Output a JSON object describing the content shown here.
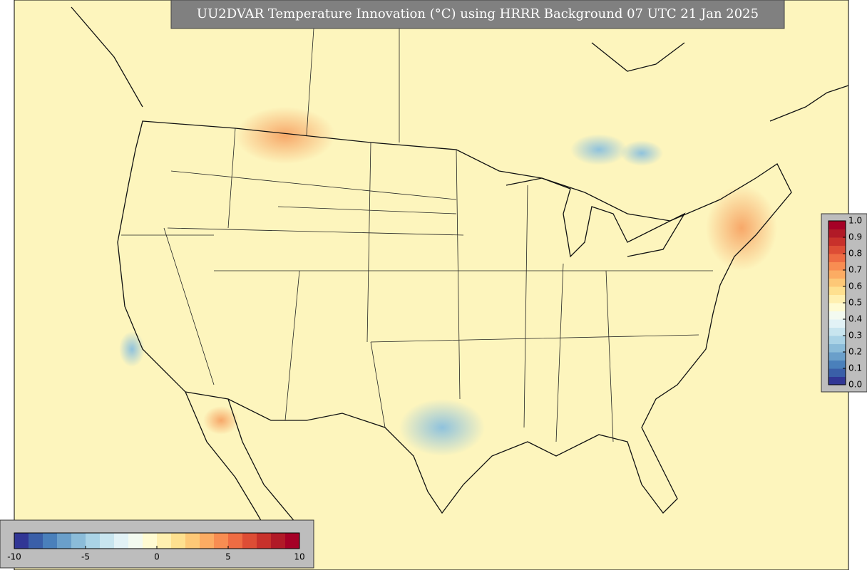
{
  "title": "UU2DVAR Temperature Innovation (°C) using HRRR Background 07 UTC 21 Jan 2025",
  "colormap": [
    "#313695",
    "#3a5fa8",
    "#4a80bb",
    "#6a9fca",
    "#8bbcd9",
    "#aad3e6",
    "#c8e5ef",
    "#e2f2f6",
    "#f3faf0",
    "#fffbd2",
    "#fff0b0",
    "#fee08f",
    "#fdc877",
    "#fcac63",
    "#f88d52",
    "#ee6c43",
    "#dd4d35",
    "#c8312b",
    "#b11a27",
    "#a50026"
  ],
  "colorbar_horizontal": {
    "lim": [
      -10,
      10
    ],
    "ticks": [
      -10,
      -5,
      0,
      5,
      10
    ]
  },
  "colorbar_vertical": {
    "lim": [
      0,
      1
    ],
    "ticks": [
      {
        "value": 0,
        "label": "0.0"
      },
      0.1,
      0.2,
      0.3,
      0.4,
      0.5,
      0.6,
      0.7,
      0.8,
      0.9,
      {
        "value": 1,
        "label": "1.0"
      }
    ]
  }
}
